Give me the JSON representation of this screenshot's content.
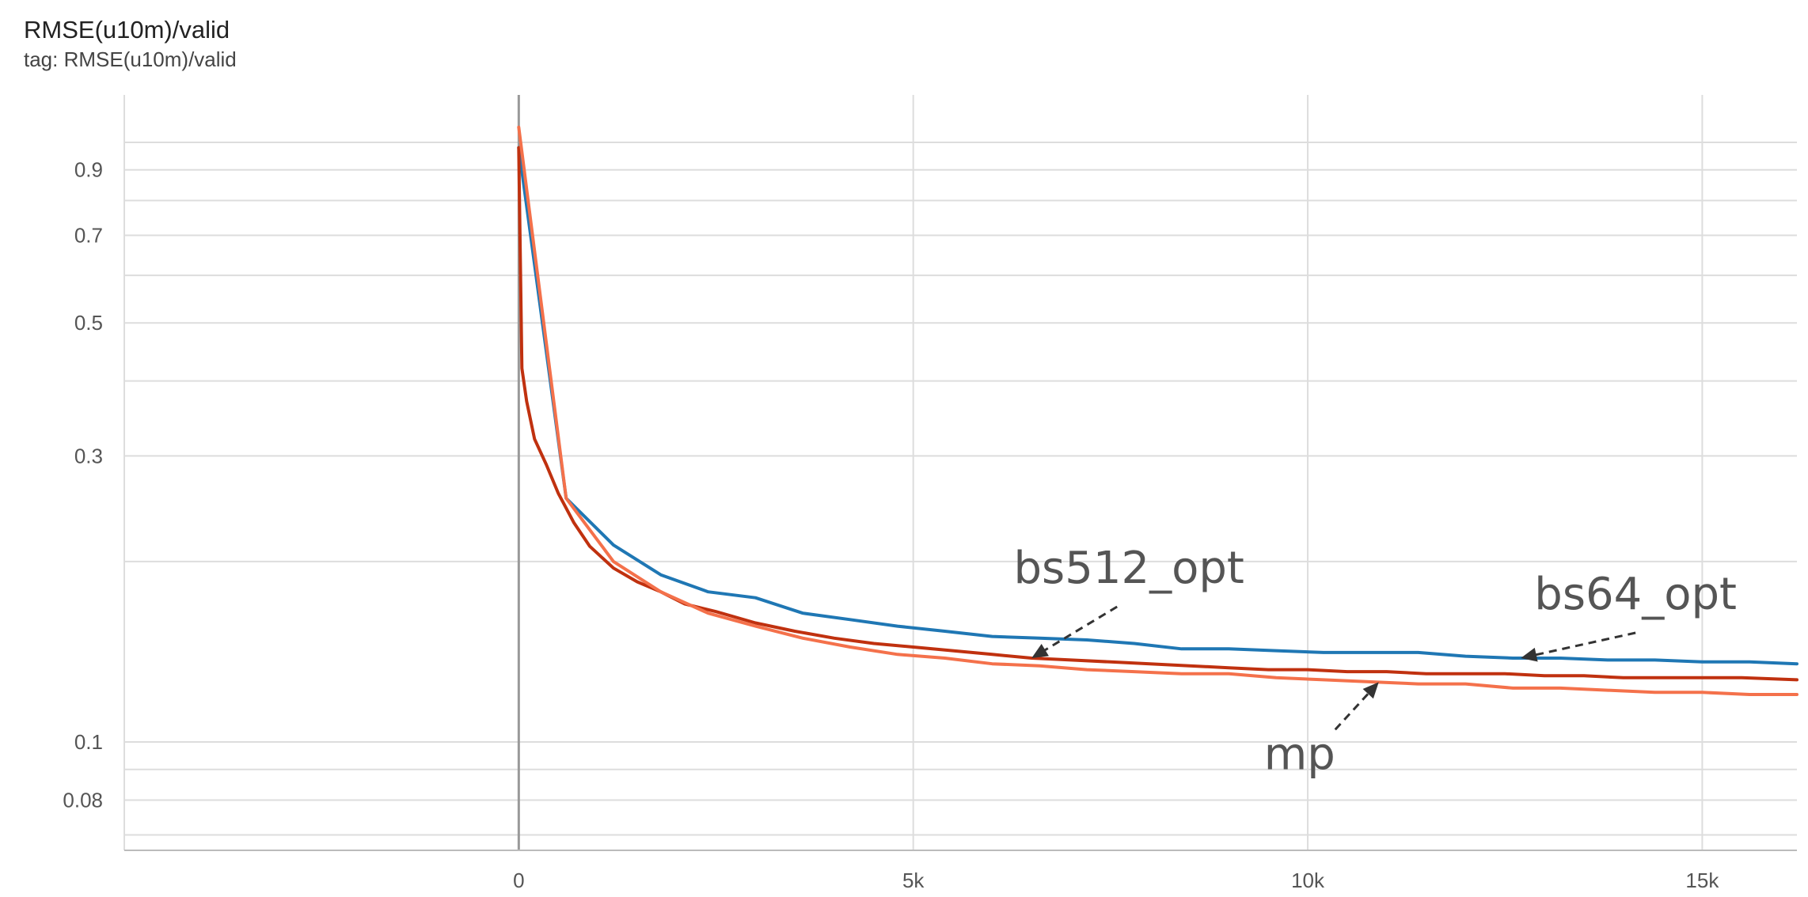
{
  "header": {
    "title": "RMSE(u10m)/valid",
    "tag": "tag: RMSE(u10m)/valid"
  },
  "chart_data": {
    "type": "line",
    "title": "RMSE(u10m)/valid",
    "subtitle": "tag: RMSE(u10m)/valid",
    "xlabel": "",
    "ylabel": "",
    "y_scale": "log",
    "xlim": [
      -5000,
      16200
    ],
    "ylim": [
      0.068,
      1.2
    ],
    "x_ticks": [
      0,
      5000,
      10000,
      15000
    ],
    "x_tick_labels": [
      "0",
      "5k",
      "10k",
      "15k"
    ],
    "y_ticks": [
      0.08,
      0.1,
      0.3,
      0.5,
      0.7,
      0.9
    ],
    "y_tick_labels": [
      "0.08",
      "0.1",
      "0.3",
      "0.5",
      "0.7",
      "0.9"
    ],
    "y_minor_gridlines": [
      0.07,
      0.09,
      0.2,
      0.4,
      0.6,
      0.8,
      1.0
    ],
    "grid": true,
    "colors": {
      "bs64_opt": "#1f77b4",
      "bs512_opt": "#c0310f",
      "mp": "#f4714b",
      "grid": "#dddddd",
      "zero_line": "#999999"
    },
    "series": [
      {
        "name": "bs64_opt",
        "color": "#1f77b4",
        "x": [
          0,
          600,
          1200,
          1800,
          2400,
          3000,
          3600,
          4200,
          4800,
          5400,
          6000,
          6600,
          7200,
          7800,
          8400,
          9000,
          9600,
          10200,
          10800,
          11400,
          12000,
          12600,
          13200,
          13800,
          14400,
          15000,
          15600,
          16200
        ],
        "y": [
          0.98,
          0.255,
          0.213,
          0.19,
          0.178,
          0.174,
          0.164,
          0.16,
          0.156,
          0.153,
          0.15,
          0.149,
          0.148,
          0.146,
          0.143,
          0.143,
          0.142,
          0.141,
          0.141,
          0.141,
          0.139,
          0.138,
          0.138,
          0.137,
          0.137,
          0.136,
          0.136,
          0.135
        ]
      },
      {
        "name": "bs512_opt",
        "color": "#c0310f",
        "x": [
          0,
          40,
          100,
          200,
          350,
          500,
          700,
          900,
          1200,
          1500,
          1800,
          2100,
          2500,
          3000,
          3500,
          4000,
          4500,
          5000,
          5500,
          6000,
          6500,
          7000,
          7500,
          8000,
          8500,
          9000,
          9500,
          10000,
          10500,
          11000,
          11500,
          12000,
          12500,
          13000,
          13500,
          14000,
          14500,
          15000,
          15500,
          16200
        ],
        "y": [
          0.98,
          0.42,
          0.37,
          0.32,
          0.29,
          0.26,
          0.232,
          0.212,
          0.195,
          0.185,
          0.178,
          0.17,
          0.165,
          0.158,
          0.153,
          0.149,
          0.146,
          0.144,
          0.142,
          0.14,
          0.138,
          0.137,
          0.136,
          0.135,
          0.134,
          0.133,
          0.132,
          0.132,
          0.131,
          0.131,
          0.13,
          0.13,
          0.13,
          0.129,
          0.129,
          0.128,
          0.128,
          0.128,
          0.128,
          0.127
        ]
      },
      {
        "name": "mp",
        "color": "#f4714b",
        "x": [
          0,
          600,
          1200,
          1800,
          2400,
          3000,
          3600,
          4200,
          4800,
          5400,
          6000,
          6600,
          7200,
          7800,
          8400,
          9000,
          9600,
          10200,
          10800,
          11400,
          12000,
          12600,
          13200,
          13800,
          14400,
          15000,
          15600,
          16200
        ],
        "y": [
          1.06,
          0.255,
          0.2,
          0.178,
          0.164,
          0.156,
          0.149,
          0.144,
          0.14,
          0.138,
          0.135,
          0.134,
          0.132,
          0.131,
          0.13,
          0.13,
          0.128,
          0.127,
          0.126,
          0.125,
          0.125,
          0.123,
          0.123,
          0.122,
          0.121,
          0.121,
          0.12,
          0.12
        ]
      }
    ],
    "annotations": [
      {
        "text": "bs512_opt",
        "series": "bs512_opt",
        "at_x": 6500
      },
      {
        "text": "bs64_opt",
        "series": "bs64_opt",
        "at_x": 12700
      },
      {
        "text": "mp",
        "series": "mp",
        "at_x": 10900
      }
    ]
  }
}
